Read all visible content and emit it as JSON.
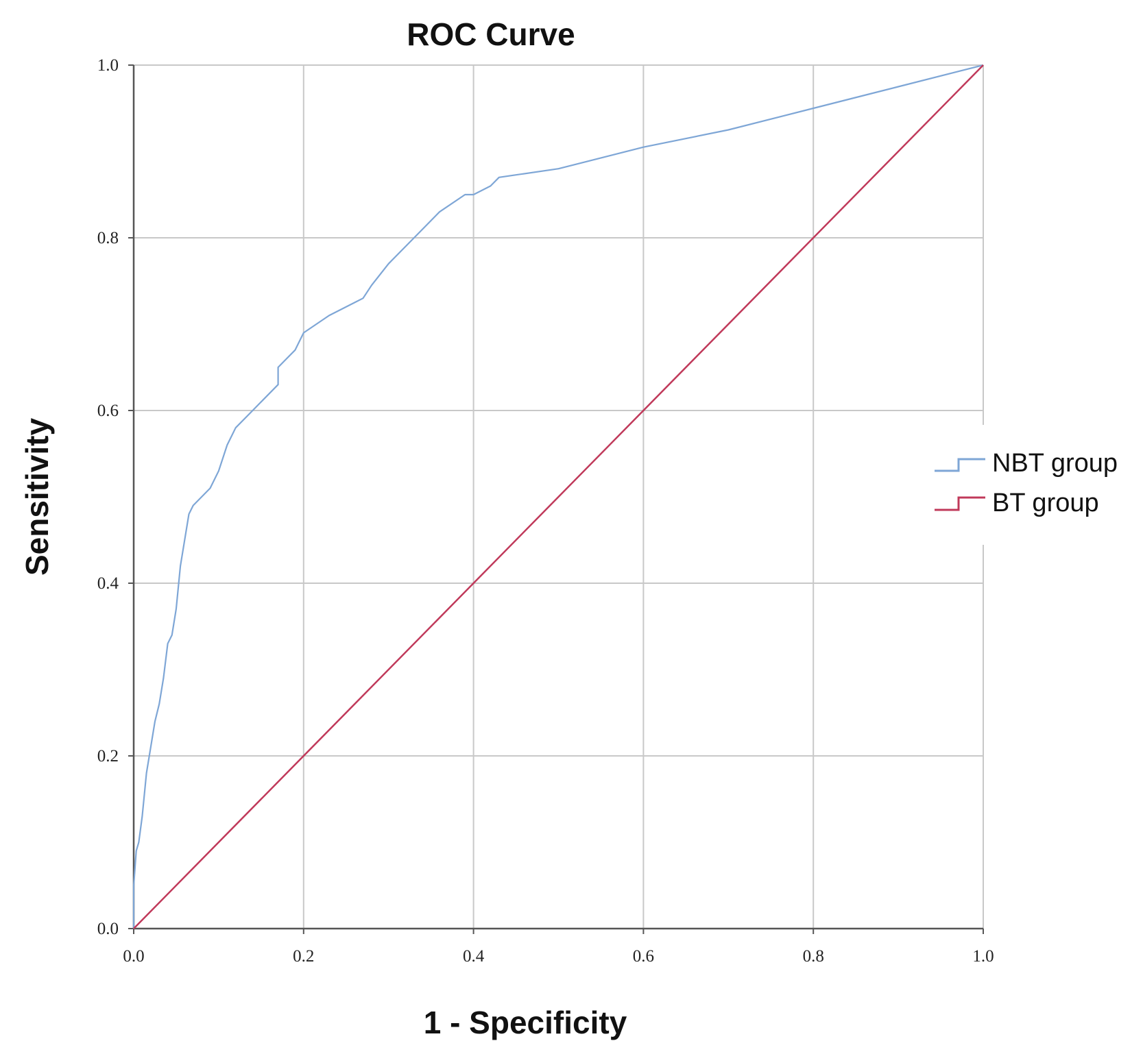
{
  "chart_data": {
    "type": "line",
    "title": "ROC Curve",
    "xlabel": "1 - Specificity",
    "ylabel": "Sensitivity",
    "xlim": [
      0,
      1
    ],
    "ylim": [
      0,
      1
    ],
    "grid": true,
    "xticks": [
      "0.0",
      "0.2",
      "0.4",
      "0.6",
      "0.8",
      "1.0"
    ],
    "yticks": [
      "0.0",
      "0.2",
      "0.4",
      "0.6",
      "0.8",
      "1.0"
    ],
    "legend_position": "right",
    "series": [
      {
        "name": "NBT group",
        "color": "#7ea6d6",
        "x": [
          0.0,
          0.0,
          0.003,
          0.006,
          0.01,
          0.015,
          0.02,
          0.025,
          0.03,
          0.035,
          0.04,
          0.045,
          0.05,
          0.055,
          0.06,
          0.065,
          0.07,
          0.08,
          0.09,
          0.1,
          0.11,
          0.12,
          0.14,
          0.16,
          0.17,
          0.17,
          0.18,
          0.19,
          0.2,
          0.23,
          0.26,
          0.27,
          0.28,
          0.3,
          0.33,
          0.36,
          0.39,
          0.4,
          0.42,
          0.43,
          0.5,
          0.6,
          0.7,
          0.8,
          0.9,
          1.0
        ],
        "y": [
          0.0,
          0.05,
          0.09,
          0.1,
          0.13,
          0.18,
          0.21,
          0.24,
          0.26,
          0.29,
          0.33,
          0.34,
          0.37,
          0.42,
          0.45,
          0.48,
          0.49,
          0.5,
          0.51,
          0.53,
          0.56,
          0.58,
          0.6,
          0.62,
          0.63,
          0.65,
          0.66,
          0.67,
          0.69,
          0.71,
          0.725,
          0.73,
          0.745,
          0.77,
          0.8,
          0.83,
          0.85,
          0.85,
          0.86,
          0.87,
          0.88,
          0.905,
          0.925,
          0.95,
          0.975,
          1.0
        ]
      },
      {
        "name": "BT group",
        "color": "#c0395a",
        "x": [
          0.0,
          1.0
        ],
        "y": [
          0.0,
          1.0
        ]
      }
    ]
  }
}
